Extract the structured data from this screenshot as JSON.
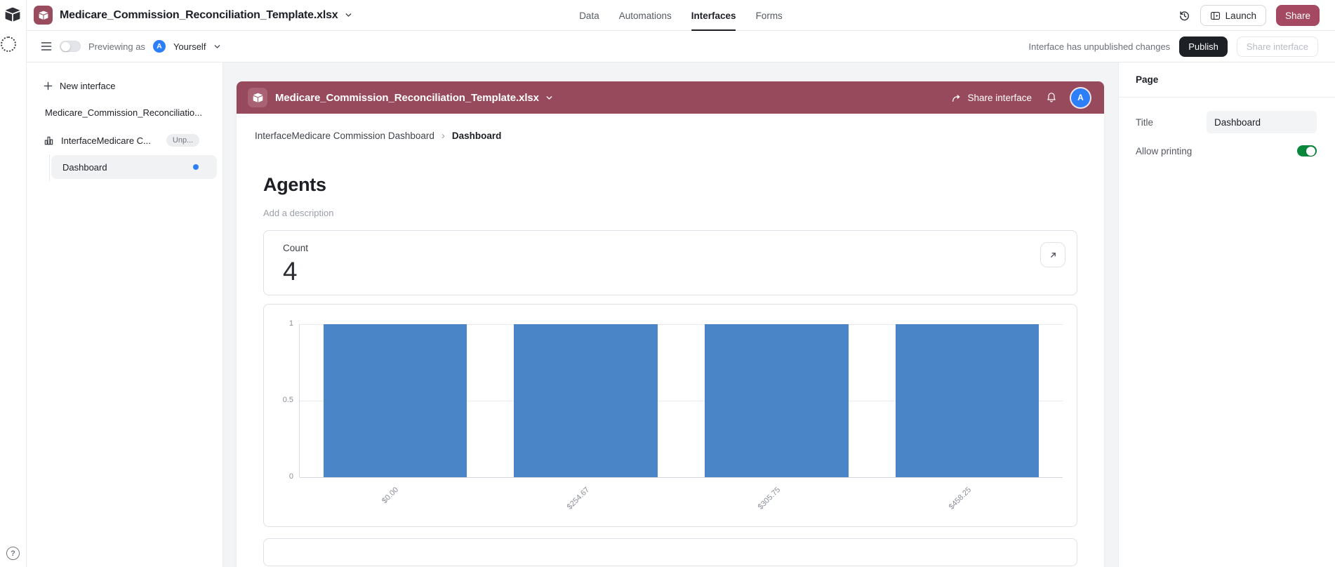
{
  "colors": {
    "brand_maroon": "#974A5B",
    "accent_blue": "#2D7FF9",
    "toggle_green": "#07873C",
    "bar_blue": "#4A86C7"
  },
  "icons": {
    "help_glyph": "?"
  },
  "topbar": {
    "base_title": "Medicare_Commission_Reconciliation_Template.xlsx",
    "nav_tabs": [
      {
        "label": "Data",
        "active": false
      },
      {
        "label": "Automations",
        "active": false
      },
      {
        "label": "Interfaces",
        "active": true
      },
      {
        "label": "Forms",
        "active": false
      }
    ],
    "launch_label": "Launch",
    "share_label": "Share"
  },
  "preview_bar": {
    "previewing_as_label": "Previewing as",
    "avatar_initial": "A",
    "viewer_name": "Yourself",
    "status_text": "Interface has unpublished changes",
    "publish_label": "Publish",
    "share_interface_label": "Share interface"
  },
  "sidebar": {
    "new_interface_label": "New interface",
    "base_item_label": "Medicare_Commission_Reconciliatio...",
    "interface_item": {
      "label": "InterfaceMedicare C...",
      "badge": "Unp..."
    },
    "pages": [
      {
        "label": "Dashboard",
        "selected": true
      }
    ]
  },
  "interface_preview": {
    "header": {
      "title": "Medicare_Commission_Reconciliation_Template.xlsx",
      "share_label": "Share interface",
      "avatar_initial": "A"
    },
    "breadcrumb": {
      "parent": "InterfaceMedicare Commission Dashboard",
      "separator": "›",
      "current": "Dashboard"
    },
    "page_title": "Agents",
    "description_placeholder": "Add a description",
    "count_card": {
      "label": "Count",
      "value": "4"
    }
  },
  "chart_data": {
    "type": "bar",
    "title": "",
    "categories": [
      "$0.00",
      "$254.67",
      "$305.75",
      "$458.25"
    ],
    "values": [
      1,
      1,
      1,
      1
    ],
    "xlabel": "",
    "ylabel": "",
    "ylim": [
      0,
      1
    ],
    "yticks": [
      0,
      0.5,
      1
    ],
    "grid": true,
    "legend": false,
    "bar_color": "#4A86C7",
    "bar_width_pct": 18.8,
    "x_tick_rotation": -45
  },
  "settings_panel": {
    "header": "Page",
    "title_label": "Title",
    "title_value": "Dashboard",
    "allow_printing_label": "Allow printing",
    "allow_printing_on": true
  }
}
